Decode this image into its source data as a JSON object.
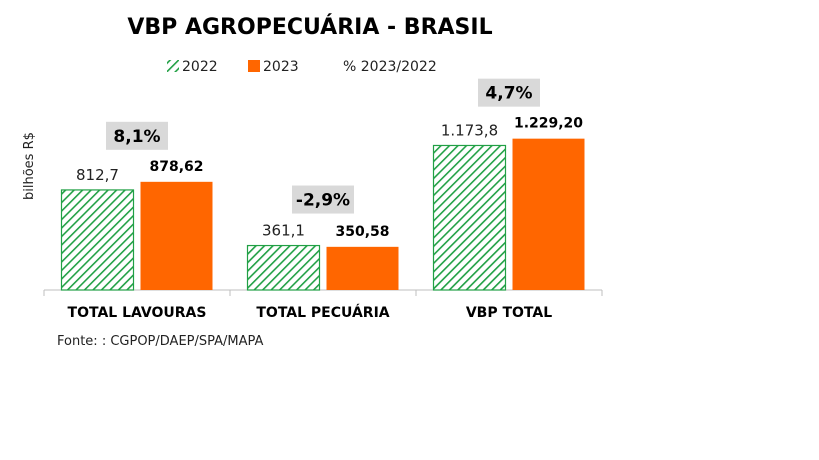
{
  "colors": {
    "series_2022": "#21a045",
    "series_2022_fill": "#ffffff",
    "series_2023": "#ff6600",
    "pct_box": "#d9d9d9",
    "axis": "#bfbfbf"
  },
  "chart_data": {
    "type": "bar",
    "title": "VBP AGROPECUÁRIA  - BRASIL",
    "ylabel": "bilhões R$",
    "xlabel": "",
    "categories": [
      "TOTAL LAVOURAS",
      "TOTAL PECUÁRIA",
      "VBP TOTAL"
    ],
    "series": [
      {
        "name": "2022",
        "values": [
          812.7,
          361.1,
          1173.8
        ],
        "labels": [
          "812,7",
          "361,1",
          "1.173,8"
        ],
        "pattern": "hatched"
      },
      {
        "name": "2023",
        "values": [
          878.62,
          350.58,
          1229.2
        ],
        "labels": [
          "878,62",
          "350,58",
          "1.229,20"
        ],
        "pattern": "solid"
      }
    ],
    "percent_change": {
      "name": "% 2023/2022",
      "labels": [
        "8,1%",
        "-2,9%",
        "4,7%"
      ]
    },
    "ylim": [
      0,
      1600
    ],
    "grid": false,
    "legend_position": "top",
    "source": "Fonte: : CGPOP/DAEP/SPA/MAPA"
  }
}
